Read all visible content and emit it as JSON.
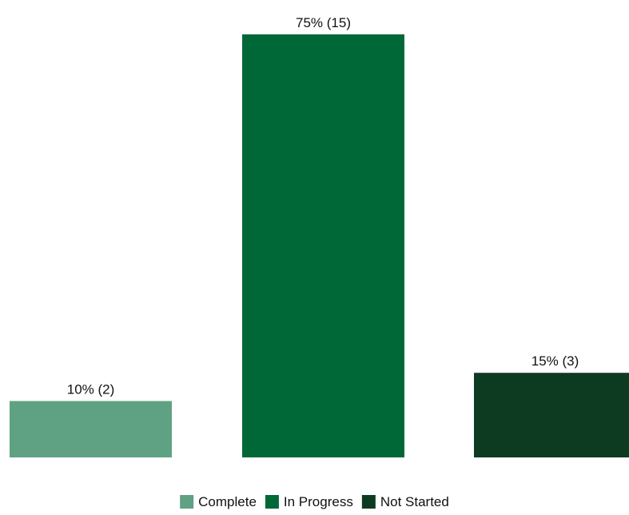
{
  "chart_data": {
    "type": "bar",
    "categories": [
      "Complete",
      "In Progress",
      "Not Started"
    ],
    "values": [
      10,
      75,
      15
    ],
    "counts": [
      2,
      15,
      3
    ],
    "data_labels": [
      "10% (2)",
      "75% (15)",
      "15% (3)"
    ],
    "colors": [
      "#5fa283",
      "#006837",
      "#0d3b22"
    ],
    "ylim": [
      0,
      75
    ],
    "grid": false,
    "axes_visible": false,
    "legend_position": "bottom-center",
    "legend": [
      {
        "label": "Complete",
        "color": "#5fa283"
      },
      {
        "label": "In Progress",
        "color": "#006837"
      },
      {
        "label": "Not Started",
        "color": "#0d3b22"
      }
    ]
  }
}
